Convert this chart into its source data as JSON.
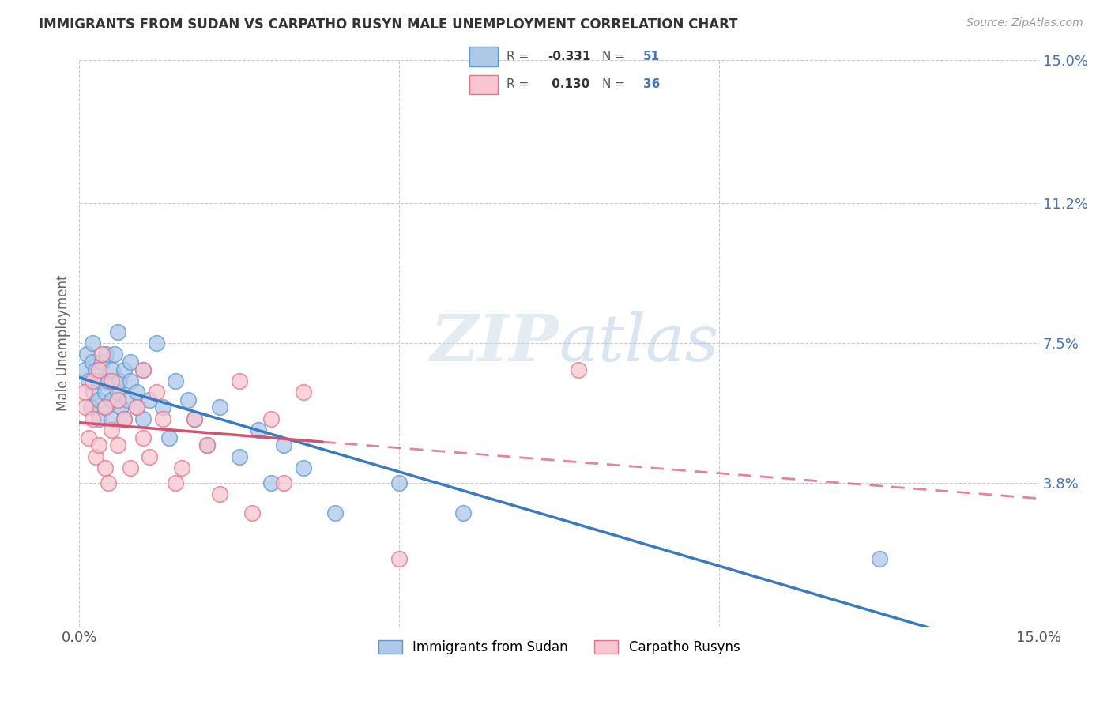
{
  "title": "IMMIGRANTS FROM SUDAN VS CARPATHO RUSYN MALE UNEMPLOYMENT CORRELATION CHART",
  "source": "Source: ZipAtlas.com",
  "ylabel": "Male Unemployment",
  "xmin": 0.0,
  "xmax": 0.15,
  "ymin": 0.0,
  "ymax": 0.15,
  "yticks": [
    0.038,
    0.075,
    0.112,
    0.15
  ],
  "ytick_labels": [
    "3.8%",
    "7.5%",
    "11.2%",
    "15.0%"
  ],
  "series1_name": "Immigrants from Sudan",
  "series2_name": "Carpatho Rusyns",
  "series1_face": "#aec8e8",
  "series1_edge": "#5b9bd5",
  "series2_face": "#f9c6d0",
  "series2_edge": "#e8728a",
  "trend1_color": "#3a7abf",
  "trend2_color": "#d94f6e",
  "trend2_dash_color": "#d94f6e",
  "r1": "-0.331",
  "n1": "51",
  "r2": "0.130",
  "n2": "36",
  "blue_x": [
    0.0008,
    0.0012,
    0.0015,
    0.0018,
    0.002,
    0.002,
    0.0022,
    0.0025,
    0.003,
    0.003,
    0.0033,
    0.0035,
    0.004,
    0.004,
    0.0042,
    0.0045,
    0.005,
    0.005,
    0.0052,
    0.0055,
    0.006,
    0.006,
    0.0062,
    0.0065,
    0.007,
    0.007,
    0.0075,
    0.008,
    0.008,
    0.009,
    0.009,
    0.01,
    0.01,
    0.011,
    0.012,
    0.013,
    0.014,
    0.015,
    0.017,
    0.018,
    0.02,
    0.022,
    0.025,
    0.028,
    0.03,
    0.032,
    0.035,
    0.04,
    0.05,
    0.06,
    0.125
  ],
  "blue_y": [
    0.068,
    0.072,
    0.065,
    0.058,
    0.07,
    0.075,
    0.062,
    0.068,
    0.06,
    0.055,
    0.065,
    0.07,
    0.058,
    0.062,
    0.072,
    0.065,
    0.055,
    0.06,
    0.068,
    0.072,
    0.078,
    0.062,
    0.065,
    0.058,
    0.055,
    0.068,
    0.06,
    0.065,
    0.07,
    0.058,
    0.062,
    0.068,
    0.055,
    0.06,
    0.075,
    0.058,
    0.05,
    0.065,
    0.06,
    0.055,
    0.048,
    0.058,
    0.045,
    0.052,
    0.038,
    0.048,
    0.042,
    0.03,
    0.038,
    0.03,
    0.018
  ],
  "pink_x": [
    0.0008,
    0.001,
    0.0015,
    0.002,
    0.002,
    0.0025,
    0.003,
    0.003,
    0.0035,
    0.004,
    0.004,
    0.0045,
    0.005,
    0.005,
    0.006,
    0.006,
    0.007,
    0.008,
    0.009,
    0.01,
    0.01,
    0.011,
    0.012,
    0.013,
    0.015,
    0.016,
    0.018,
    0.02,
    0.022,
    0.025,
    0.027,
    0.03,
    0.032,
    0.035,
    0.05,
    0.078
  ],
  "pink_y": [
    0.062,
    0.058,
    0.05,
    0.065,
    0.055,
    0.045,
    0.068,
    0.048,
    0.072,
    0.042,
    0.058,
    0.038,
    0.065,
    0.052,
    0.048,
    0.06,
    0.055,
    0.042,
    0.058,
    0.05,
    0.068,
    0.045,
    0.062,
    0.055,
    0.038,
    0.042,
    0.055,
    0.048,
    0.035,
    0.065,
    0.03,
    0.055,
    0.038,
    0.062,
    0.018,
    0.068
  ]
}
